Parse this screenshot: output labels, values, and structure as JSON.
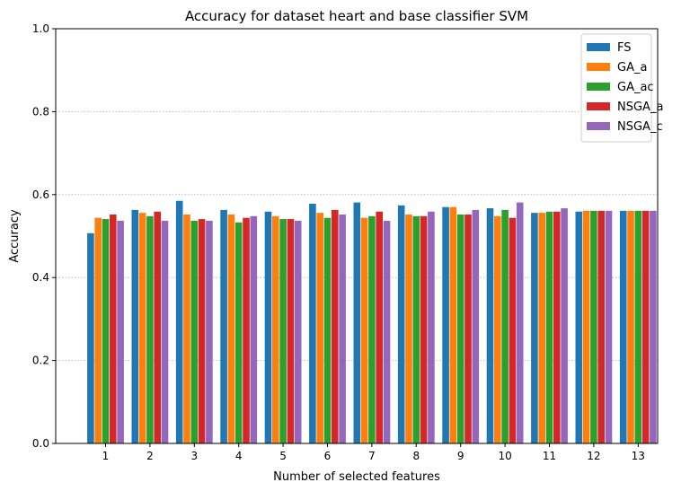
{
  "chart_data": {
    "type": "bar",
    "title": "Accuracy for dataset heart and base classifier SVM",
    "xlabel": "Number of selected features",
    "ylabel": "Accuracy",
    "ylim": [
      0,
      1.0
    ],
    "yticks": [
      "0.0",
      "0.2",
      "0.4",
      "0.6",
      "0.8",
      "1.0"
    ],
    "grid": "y-dotted",
    "legend_position": "top-right",
    "categories": [
      "1",
      "2",
      "3",
      "4",
      "5",
      "6",
      "7",
      "8",
      "9",
      "10",
      "11",
      "12",
      "13"
    ],
    "series": [
      {
        "name": "FS",
        "color": "#1f77b4",
        "values": [
          0.507,
          0.563,
          0.585,
          0.563,
          0.559,
          0.578,
          0.581,
          0.574,
          0.57,
          0.567,
          0.556,
          0.559,
          0.561
        ]
      },
      {
        "name": "GA_a",
        "color": "#ff7f0e",
        "values": [
          0.544,
          0.556,
          0.552,
          0.552,
          0.548,
          0.556,
          0.544,
          0.552,
          0.57,
          0.548,
          0.556,
          0.561,
          0.561
        ]
      },
      {
        "name": "GA_ac",
        "color": "#2ca02c",
        "values": [
          0.541,
          0.548,
          0.537,
          0.533,
          0.541,
          0.544,
          0.548,
          0.548,
          0.552,
          0.563,
          0.559,
          0.561,
          0.561
        ]
      },
      {
        "name": "NSGA_a",
        "color": "#d62728",
        "values": [
          0.552,
          0.559,
          0.541,
          0.544,
          0.541,
          0.563,
          0.559,
          0.548,
          0.552,
          0.544,
          0.559,
          0.561,
          0.561
        ]
      },
      {
        "name": "NSGA_c",
        "color": "#9467bd",
        "values": [
          0.537,
          0.537,
          0.537,
          0.548,
          0.537,
          0.552,
          0.537,
          0.559,
          0.563,
          0.581,
          0.567,
          0.561,
          0.561
        ]
      }
    ]
  }
}
